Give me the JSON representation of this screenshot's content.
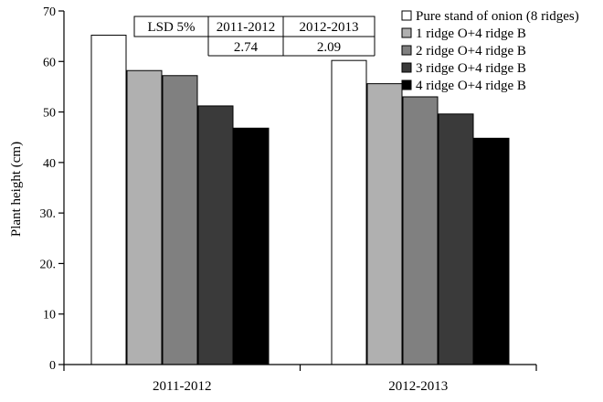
{
  "chart_data": {
    "type": "bar",
    "categories": [
      "2011-2012",
      "2012-2013"
    ],
    "series": [
      {
        "name": "Pure stand of onion (8 ridges)",
        "values": [
          65.2,
          60.2
        ]
      },
      {
        "name": "1 ridge O+4 ridge B",
        "values": [
          58.2,
          55.6
        ]
      },
      {
        "name": "2 ridge O+4 ridge B",
        "values": [
          57.2,
          53.0
        ]
      },
      {
        "name": "3 ridge O+4 ridge B",
        "values": [
          51.2,
          49.6
        ]
      },
      {
        "name": "4 ridge O+4 ridge B",
        "values": [
          46.8,
          44.8
        ]
      }
    ],
    "colors": [
      "#ffffff",
      "#b0b0b0",
      "#808080",
      "#3a3a3a",
      "#000000"
    ],
    "ylabel": "Plant height (cm)",
    "ylim": [
      0,
      70
    ],
    "yticks": [
      0,
      10,
      20,
      30,
      40,
      50,
      60,
      70
    ],
    "ytick_labels": [
      "0",
      "10",
      "20.",
      "30.",
      "40",
      "50",
      "60",
      "70"
    ],
    "grid": false,
    "legend_position": "top-right",
    "annotation_table": {
      "header": [
        "LSD 5%",
        "2011-2012",
        "2012-2013"
      ],
      "row": [
        "",
        "2.74",
        "2.09"
      ]
    }
  }
}
